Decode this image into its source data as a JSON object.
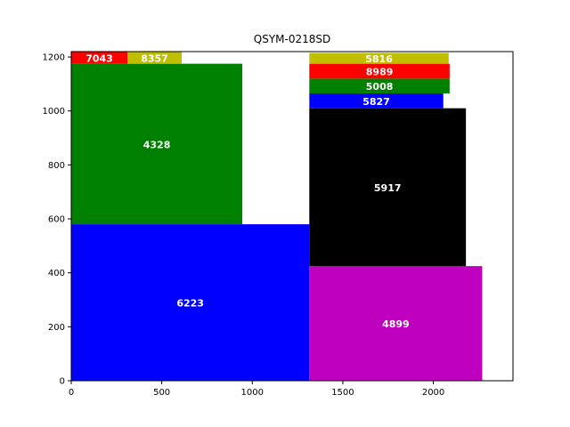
{
  "chart_data": {
    "type": "bar",
    "title": "QSYM-0218SD",
    "xlabel": "",
    "ylabel": "",
    "xlim": [
      0,
      2440
    ],
    "ylim": [
      0,
      1220
    ],
    "xticks": [
      0,
      500,
      1000,
      1500,
      2000
    ],
    "yticks": [
      0,
      200,
      400,
      600,
      800,
      1000,
      1200
    ],
    "grid": false,
    "rectangles": [
      {
        "label": "6223",
        "x": 0,
        "y": 0,
        "width": 1315,
        "height": 580,
        "color": "#0000ff"
      },
      {
        "label": "4328",
        "x": 0,
        "y": 580,
        "width": 945,
        "height": 595,
        "color": "#008000"
      },
      {
        "label": "7043",
        "x": 0,
        "y": 1175,
        "width": 310,
        "height": 45,
        "color": "#ff0000"
      },
      {
        "label": "8357",
        "x": 310,
        "y": 1175,
        "width": 300,
        "height": 45,
        "color": "#bfbf00"
      },
      {
        "label": "4899",
        "x": 1315,
        "y": 0,
        "width": 955,
        "height": 425,
        "color": "#bf00bf"
      },
      {
        "label": "5917",
        "x": 1315,
        "y": 425,
        "width": 865,
        "height": 585,
        "color": "#000000"
      },
      {
        "label": "5827",
        "x": 1315,
        "y": 1010,
        "width": 740,
        "height": 55,
        "color": "#0000ff"
      },
      {
        "label": "5008",
        "x": 1315,
        "y": 1065,
        "width": 775,
        "height": 55,
        "color": "#008000"
      },
      {
        "label": "8989",
        "x": 1315,
        "y": 1120,
        "width": 775,
        "height": 55,
        "color": "#ff0000"
      },
      {
        "label": "5816",
        "x": 1315,
        "y": 1175,
        "width": 770,
        "height": 40,
        "color": "#bfbf00"
      }
    ]
  }
}
